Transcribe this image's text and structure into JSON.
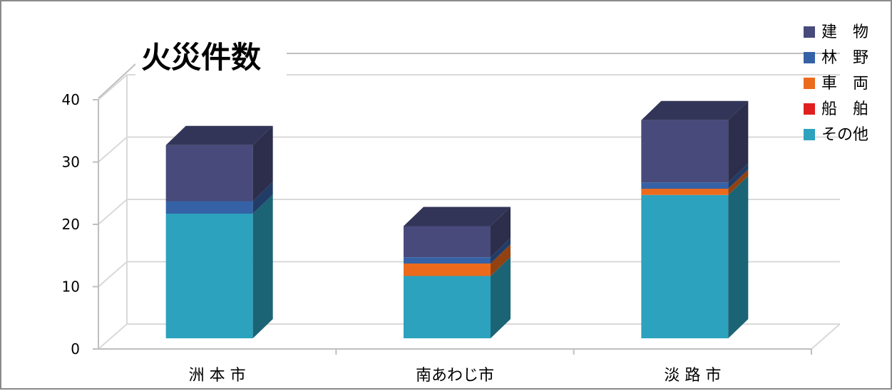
{
  "chart_data": {
    "type": "bar",
    "stacked": true,
    "style": "3d",
    "title": "火災件数",
    "categories": [
      "洲 本 市",
      "南あわじ市",
      "淡 路 市"
    ],
    "series": [
      {
        "name": "その他",
        "color": "#2ca2be",
        "values": [
          20,
          10,
          23
        ]
      },
      {
        "name": "船　舶",
        "color": "#e02020",
        "values": [
          0,
          0,
          0
        ]
      },
      {
        "name": "車　両",
        "color": "#ec6a1c",
        "values": [
          0,
          2,
          1
        ]
      },
      {
        "name": "林　野",
        "color": "#3562a6",
        "values": [
          2,
          1,
          1
        ]
      },
      {
        "name": "建　物",
        "color": "#474a7a",
        "values": [
          9,
          5,
          10
        ]
      }
    ],
    "y_ticks": [
      0,
      10,
      20,
      30,
      40
    ],
    "ylim": [
      0,
      40
    ],
    "legend_position": "top-right",
    "grid": true
  }
}
